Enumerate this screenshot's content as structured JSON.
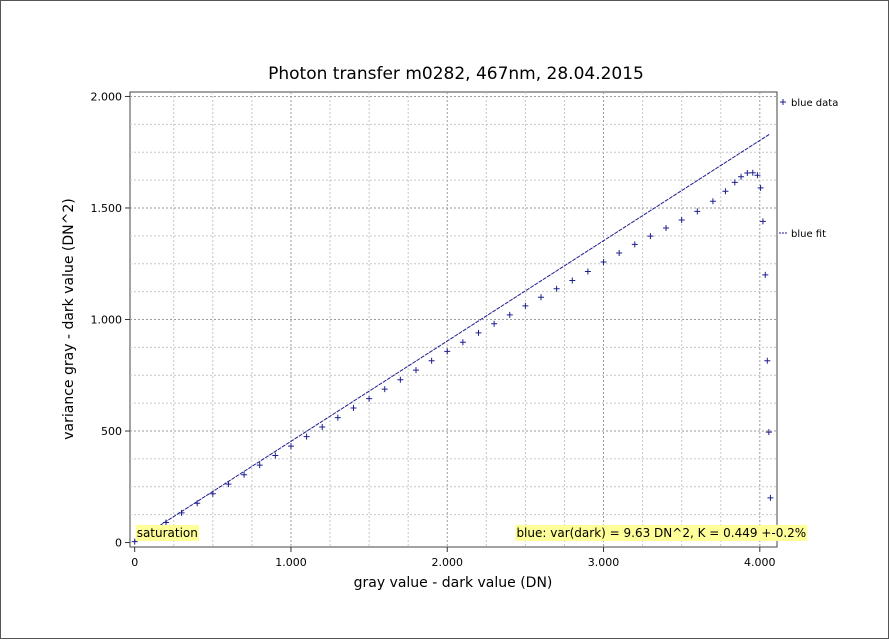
{
  "chart_data": {
    "type": "scatter",
    "title": "Photon transfer m0282, 467nm, 28.04.2015",
    "xlabel": "gray value - dark value (DN)",
    "ylabel": "variance gray - dark value (DN^2)",
    "xlim": [
      -30,
      4110
    ],
    "ylim": [
      -20,
      2020
    ],
    "x_ticks": [
      {
        "value": 0,
        "label": "0"
      },
      {
        "value": 1000,
        "label": "1.000"
      },
      {
        "value": 2000,
        "label": "2.000"
      },
      {
        "value": 3000,
        "label": "3.000"
      },
      {
        "value": 4000,
        "label": "4.000"
      }
    ],
    "y_ticks": [
      {
        "value": 0,
        "label": "0"
      },
      {
        "value": 500,
        "label": "500"
      },
      {
        "value": 1000,
        "label": "1.000"
      },
      {
        "value": 1500,
        "label": "1.500"
      },
      {
        "value": 2000,
        "label": "2.000"
      }
    ],
    "grid": true,
    "legend_position": "right",
    "series": [
      {
        "name": "blue data",
        "kind": "points",
        "marker": "+",
        "color": "#1f1f8f",
        "points": [
          [
            0,
            4
          ],
          [
            100,
            47
          ],
          [
            200,
            90
          ],
          [
            300,
            133
          ],
          [
            400,
            176
          ],
          [
            500,
            219
          ],
          [
            600,
            262
          ],
          [
            700,
            304
          ],
          [
            800,
            347
          ],
          [
            900,
            390
          ],
          [
            1000,
            432
          ],
          [
            1100,
            475
          ],
          [
            1200,
            518
          ],
          [
            1300,
            560
          ],
          [
            1400,
            603
          ],
          [
            1500,
            645
          ],
          [
            1600,
            688
          ],
          [
            1700,
            730
          ],
          [
            1800,
            773
          ],
          [
            1900,
            815
          ],
          [
            2000,
            857
          ],
          [
            2100,
            898
          ],
          [
            2200,
            940
          ],
          [
            2300,
            981
          ],
          [
            2400,
            1021
          ],
          [
            2500,
            1061
          ],
          [
            2600,
            1100
          ],
          [
            2700,
            1138
          ],
          [
            2800,
            1175
          ],
          [
            2900,
            1215
          ],
          [
            3000,
            1258
          ],
          [
            3100,
            1298
          ],
          [
            3200,
            1337
          ],
          [
            3300,
            1374
          ],
          [
            3400,
            1410
          ],
          [
            3500,
            1446
          ],
          [
            3600,
            1485
          ],
          [
            3700,
            1530
          ],
          [
            3780,
            1575
          ],
          [
            3840,
            1615
          ],
          [
            3880,
            1640
          ],
          [
            3920,
            1657
          ],
          [
            3955,
            1658
          ],
          [
            3985,
            1647
          ],
          [
            4005,
            1590
          ],
          [
            4020,
            1440
          ],
          [
            4035,
            1200
          ],
          [
            4048,
            815
          ],
          [
            4058,
            495
          ],
          [
            4068,
            200
          ]
        ]
      },
      {
        "name": "blue fit",
        "kind": "line",
        "color": "#1f1f8f",
        "points": [
          [
            0,
            4
          ],
          [
            4060,
            1830
          ]
        ]
      }
    ],
    "annotations": [
      {
        "text": "saturation",
        "x": 0,
        "y": 25,
        "background": "#ffff99"
      },
      {
        "text": "blue: var(dark) = 9.63 DN^2, K = 0.449 +-0.2%",
        "x": 2430,
        "y": 25,
        "background": "#ffff99"
      }
    ]
  }
}
